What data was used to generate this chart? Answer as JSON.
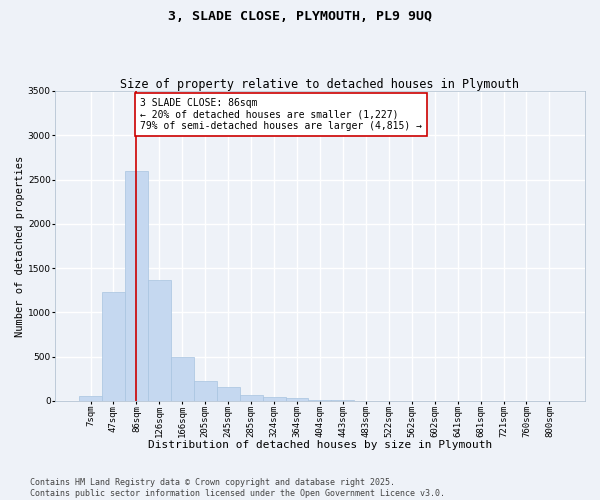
{
  "title": "3, SLADE CLOSE, PLYMOUTH, PL9 9UQ",
  "subtitle": "Size of property relative to detached houses in Plymouth",
  "xlabel": "Distribution of detached houses by size in Plymouth",
  "ylabel": "Number of detached properties",
  "categories": [
    "7sqm",
    "47sqm",
    "86sqm",
    "126sqm",
    "166sqm",
    "205sqm",
    "245sqm",
    "285sqm",
    "324sqm",
    "364sqm",
    "404sqm",
    "443sqm",
    "483sqm",
    "522sqm",
    "562sqm",
    "602sqm",
    "641sqm",
    "681sqm",
    "721sqm",
    "760sqm",
    "800sqm"
  ],
  "values": [
    50,
    1230,
    2600,
    1370,
    490,
    220,
    160,
    70,
    40,
    30,
    10,
    5,
    2,
    1,
    0,
    0,
    0,
    0,
    0,
    0,
    0
  ],
  "bar_color": "#c5d8f0",
  "bar_edge_color": "#a8c4e0",
  "vline_x_idx": 2,
  "vline_color": "#cc0000",
  "annotation_text": "3 SLADE CLOSE: 86sqm\n← 20% of detached houses are smaller (1,227)\n79% of semi-detached houses are larger (4,815) →",
  "annotation_box_color": "#ffffff",
  "annotation_box_edge": "#cc0000",
  "ylim": [
    0,
    3500
  ],
  "yticks": [
    0,
    500,
    1000,
    1500,
    2000,
    2500,
    3000,
    3500
  ],
  "background_color": "#eef2f8",
  "grid_color": "#ffffff",
  "footer": "Contains HM Land Registry data © Crown copyright and database right 2025.\nContains public sector information licensed under the Open Government Licence v3.0.",
  "title_fontsize": 9.5,
  "subtitle_fontsize": 8.5,
  "xlabel_fontsize": 8,
  "ylabel_fontsize": 7.5,
  "tick_fontsize": 6.5,
  "annotation_fontsize": 7,
  "footer_fontsize": 6
}
